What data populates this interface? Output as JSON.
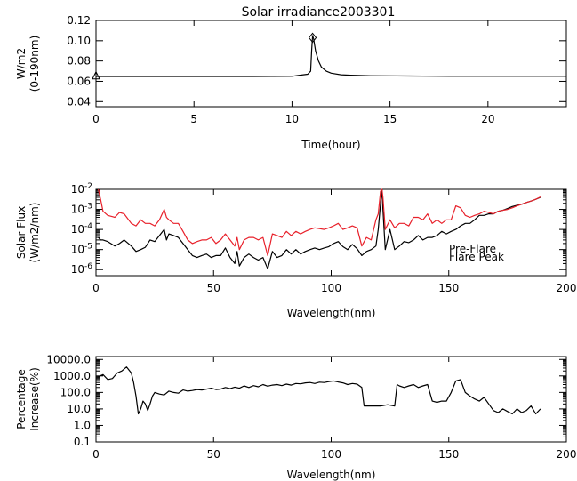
{
  "chart_data": [
    {
      "type": "line",
      "title": "Solar irradiance2003301",
      "xlabel": "Time(hour)",
      "ylabel": [
        "W/m2",
        "(0-190nm)"
      ],
      "xlim": [
        0,
        24
      ],
      "ylim": [
        0.035,
        0.12
      ],
      "xticks": [
        0,
        5,
        10,
        15,
        20
      ],
      "xtick_labels": [
        "0",
        "5",
        "10",
        "15",
        "20"
      ],
      "yticks": [
        0.04,
        0.06,
        0.08,
        0.1,
        0.12
      ],
      "ytick_labels": [
        "0.04",
        "0.06",
        "0.08",
        "0.10",
        "0.12"
      ],
      "log_y": false,
      "grid": false,
      "series": [
        {
          "color": "#000000",
          "x": [
            0,
            2,
            4,
            6,
            8,
            10.0,
            10.4,
            10.8,
            10.95,
            11.0,
            11.05,
            11.1,
            11.2,
            11.35,
            11.5,
            11.75,
            12.0,
            12.5,
            13,
            14,
            16,
            18,
            20,
            22,
            24
          ],
          "y": [
            0.0648,
            0.0648,
            0.0648,
            0.0648,
            0.0648,
            0.065,
            0.066,
            0.067,
            0.07,
            0.09,
            0.105,
            0.102,
            0.09,
            0.08,
            0.074,
            0.07,
            0.068,
            0.0665,
            0.066,
            0.0655,
            0.0652,
            0.065,
            0.065,
            0.065,
            0.065
          ]
        }
      ],
      "markers": [
        {
          "shape": "triangle",
          "x": 0,
          "y": 0.065
        },
        {
          "shape": "diamond",
          "x": 11.05,
          "y": 0.103
        }
      ]
    },
    {
      "type": "line",
      "xlabel": "Wavelength(nm)",
      "ylabel": [
        "Solar Flux",
        "(W/m2/nm)"
      ],
      "xlim": [
        0,
        200
      ],
      "ylim": [
        5e-07,
        0.01
      ],
      "log_y": true,
      "xticks": [
        0,
        50,
        100,
        150,
        200
      ],
      "xtick_labels": [
        "0",
        "50",
        "100",
        "150",
        "200"
      ],
      "yticks": [
        1e-06,
        1e-05,
        0.0001,
        0.001,
        0.01
      ],
      "ytick_labels": [
        "10-6",
        "10-5",
        "10-4",
        "10-3",
        "10-2"
      ],
      "grid": false,
      "legend_position": "right",
      "series": [
        {
          "name": "Pre-Flare",
          "color": "#000000",
          "x": [
            1,
            2,
            3,
            5,
            8,
            10,
            12,
            15,
            17,
            19,
            21,
            23,
            25,
            27,
            29,
            30,
            31,
            33,
            35,
            37,
            39,
            41,
            43,
            45,
            47,
            49,
            51,
            53,
            55,
            57,
            59,
            60,
            61,
            63,
            65,
            67,
            69,
            71,
            73,
            75,
            77,
            79,
            81,
            83,
            85,
            87,
            89,
            91,
            93,
            95,
            97,
            99,
            101,
            103,
            105,
            107,
            109,
            111,
            113,
            115,
            117,
            119,
            120,
            121,
            121.6,
            122,
            123,
            125,
            127,
            129,
            131,
            133,
            135,
            137,
            139,
            141,
            143,
            145,
            147,
            149,
            151,
            153,
            155,
            157,
            159,
            161,
            163,
            165,
            167,
            169,
            171,
            173,
            175,
            177,
            179,
            181,
            183,
            185,
            187,
            189
          ],
          "y": [
            4e-05,
            3e-05,
            3e-05,
            2.5e-05,
            1.5e-05,
            2e-05,
            3e-05,
            1.5e-05,
            8e-06,
            1e-05,
            1.3e-05,
            3e-05,
            2.5e-05,
            5e-05,
            0.0001,
            3e-05,
            6e-05,
            5e-05,
            4e-05,
            2e-05,
            1e-05,
            5e-06,
            4e-06,
            5e-06,
            6e-06,
            4e-06,
            5e-06,
            5e-06,
            1.2e-05,
            4e-06,
            2e-06,
            8e-06,
            1.5e-06,
            4e-06,
            6e-06,
            4e-06,
            3e-06,
            4e-06,
            1.1e-06,
            8e-06,
            4e-06,
            5e-06,
            1e-05,
            6e-06,
            1e-05,
            6e-06,
            8e-06,
            1e-05,
            1.2e-05,
            1e-05,
            1.2e-05,
            1.4e-05,
            2e-05,
            2.5e-05,
            1.4e-05,
            1e-05,
            1.8e-05,
            1.1e-05,
            5e-06,
            8e-06,
            1e-05,
            1.5e-05,
            0.0001,
            0.002,
            0.0095,
            0.001,
            1e-05,
            0.0001,
            1e-05,
            1.5e-05,
            2.5e-05,
            2.2e-05,
            3e-05,
            5e-05,
            3e-05,
            4e-05,
            4e-05,
            5e-05,
            8e-05,
            6e-05,
            8e-05,
            0.0001,
            0.00015,
            0.0002,
            0.0002,
            0.0003,
            0.0005,
            0.0005,
            0.0006,
            0.0006,
            0.0008,
            0.0009,
            0.0011,
            0.0014,
            0.0016,
            0.0018,
            0.0022,
            0.0026,
            0.0032,
            0.004
          ]
        },
        {
          "name": "Flare Peak",
          "color": "#e8202a",
          "x": [
            1,
            2,
            3,
            5,
            8,
            10,
            12,
            15,
            17,
            19,
            21,
            23,
            25,
            27,
            29,
            30,
            31,
            33,
            35,
            37,
            39,
            41,
            43,
            45,
            47,
            49,
            51,
            53,
            55,
            57,
            59,
            60,
            61,
            63,
            65,
            67,
            69,
            71,
            73,
            75,
            77,
            79,
            81,
            83,
            85,
            87,
            89,
            91,
            93,
            95,
            97,
            99,
            101,
            103,
            105,
            107,
            109,
            111,
            113,
            115,
            117,
            119,
            120,
            121,
            121.6,
            122,
            123,
            125,
            127,
            129,
            131,
            133,
            135,
            137,
            139,
            141,
            143,
            145,
            147,
            149,
            151,
            153,
            155,
            157,
            159,
            161,
            163,
            165,
            167,
            169,
            171,
            173,
            175,
            177,
            179,
            181,
            183,
            185,
            187,
            189
          ],
          "y": [
            0.01,
            0.003,
            0.0008,
            0.0005,
            0.0004,
            0.0007,
            0.0006,
            0.0002,
            0.00015,
            0.0003,
            0.0002,
            0.0002,
            0.00015,
            0.0003,
            0.001,
            0.0004,
            0.0003,
            0.0002,
            0.0002,
            8e-05,
            3e-05,
            2e-05,
            2.5e-05,
            3e-05,
            3e-05,
            4e-05,
            2e-05,
            3e-05,
            6e-05,
            3e-05,
            1.5e-05,
            4e-05,
            1e-05,
            3e-05,
            4e-05,
            4e-05,
            3e-05,
            4e-05,
            5e-06,
            6e-05,
            5e-05,
            4e-05,
            8e-05,
            5e-05,
            8e-05,
            6e-05,
            8e-05,
            0.0001,
            0.00012,
            0.00011,
            0.0001,
            0.00012,
            0.00015,
            0.0002,
            0.0001,
            0.00012,
            0.00015,
            0.00012,
            1.5e-05,
            4e-05,
            3e-05,
            0.0003,
            0.0006,
            0.008,
            0.012,
            0.004,
            0.0001,
            0.0003,
            0.00012,
            0.0002,
            0.0002,
            0.00015,
            0.0004,
            0.0004,
            0.0003,
            0.0006,
            0.0002,
            0.0003,
            0.0002,
            0.0003,
            0.0003,
            0.0015,
            0.0012,
            0.0005,
            0.0004,
            0.0005,
            0.0006,
            0.0008,
            0.0007,
            0.0006,
            0.0008,
            0.0009,
            0.001,
            0.0012,
            0.0015,
            0.0018,
            0.0022,
            0.0026,
            0.0032,
            0.0042
          ]
        }
      ]
    },
    {
      "type": "line",
      "xlabel": "Wavelength(nm)",
      "ylabel": [
        "Percentage",
        "Increase(%)"
      ],
      "xlim": [
        0,
        200
      ],
      "ylim": [
        0.1,
        15000
      ],
      "log_y": true,
      "xticks": [
        0,
        50,
        100,
        150,
        200
      ],
      "xtick_labels": [
        "0",
        "50",
        "100",
        "150",
        "200"
      ],
      "yticks": [
        0.1,
        1,
        10,
        100,
        1000,
        10000
      ],
      "ytick_labels": [
        "0.1",
        "1.0",
        "10.0",
        "100.0",
        "1000.0",
        "10000.0"
      ],
      "grid": false,
      "series": [
        {
          "color": "#000000",
          "x": [
            1,
            3,
            5,
            7,
            9,
            11,
            13,
            15,
            16,
            17,
            18,
            19,
            20,
            21,
            22,
            23,
            24,
            25,
            27,
            29,
            31,
            33,
            35,
            37,
            39,
            41,
            43,
            45,
            47,
            49,
            51,
            53,
            55,
            57,
            59,
            61,
            63,
            65,
            67,
            69,
            71,
            73,
            75,
            77,
            79,
            81,
            83,
            85,
            87,
            89,
            91,
            93,
            95,
            97,
            99,
            101,
            103,
            105,
            107,
            109,
            111,
            113,
            114,
            115,
            118,
            121,
            124,
            127,
            128,
            129,
            131,
            133,
            135,
            137,
            139,
            141,
            143,
            145,
            147,
            149,
            151,
            153,
            155,
            157,
            159,
            161,
            163,
            165,
            167,
            169,
            171,
            173,
            175,
            177,
            179,
            181,
            183,
            185,
            187,
            189
          ],
          "y": [
            900,
            1200,
            600,
            700,
            1500,
            2000,
            3500,
            1500,
            400,
            60,
            5,
            10,
            30,
            20,
            8,
            20,
            60,
            100,
            80,
            70,
            120,
            100,
            90,
            140,
            120,
            130,
            150,
            140,
            160,
            180,
            150,
            160,
            200,
            170,
            210,
            180,
            250,
            200,
            260,
            220,
            300,
            240,
            280,
            300,
            260,
            320,
            280,
            350,
            330,
            380,
            400,
            350,
            420,
            400,
            450,
            500,
            430,
            380,
            300,
            350,
            320,
            200,
            15,
            15,
            15,
            15,
            18,
            15,
            300,
            250,
            200,
            250,
            300,
            200,
            250,
            300,
            30,
            25,
            30,
            30,
            100,
            500,
            600,
            100,
            60,
            40,
            30,
            50,
            20,
            8,
            6,
            10,
            7,
            5,
            10,
            6,
            8,
            15,
            5,
            10
          ]
        }
      ]
    }
  ]
}
